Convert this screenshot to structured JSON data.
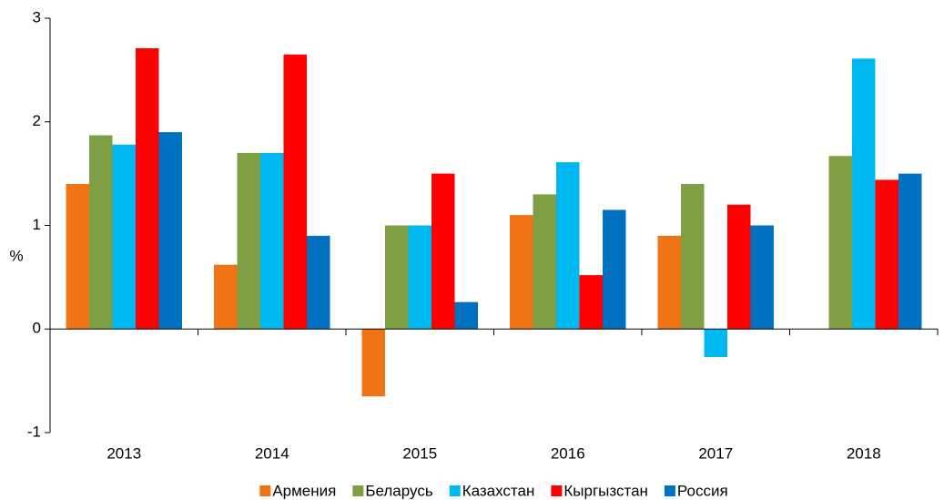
{
  "chart_data": {
    "type": "bar",
    "categories": [
      "2013",
      "2014",
      "2015",
      "2016",
      "2017",
      "2018"
    ],
    "y_label": "%",
    "series": [
      {
        "name": "Армения",
        "color": "#f07314",
        "values": [
          1.4,
          0.62,
          -0.65,
          1.1,
          0.9,
          null
        ]
      },
      {
        "name": "Беларусь",
        "color": "#7f9f45",
        "values": [
          1.87,
          1.7,
          1.0,
          1.3,
          1.4,
          1.67
        ]
      },
      {
        "name": "Казахстан",
        "color": "#00b8f0",
        "values": [
          1.78,
          1.7,
          1.0,
          1.61,
          -0.27,
          2.61
        ]
      },
      {
        "name": "Кыргызстан",
        "color": "#ff0000",
        "values": [
          2.71,
          2.65,
          1.5,
          0.52,
          1.2,
          1.44
        ]
      },
      {
        "name": "Россия",
        "color": "#0070c0",
        "values": [
          1.9,
          0.9,
          0.26,
          1.15,
          1.0,
          1.5
        ]
      }
    ],
    "ylim": [
      -1,
      3
    ],
    "yticks": [
      -1,
      0,
      1,
      2,
      3
    ],
    "grid": false,
    "legend": "bottom"
  }
}
